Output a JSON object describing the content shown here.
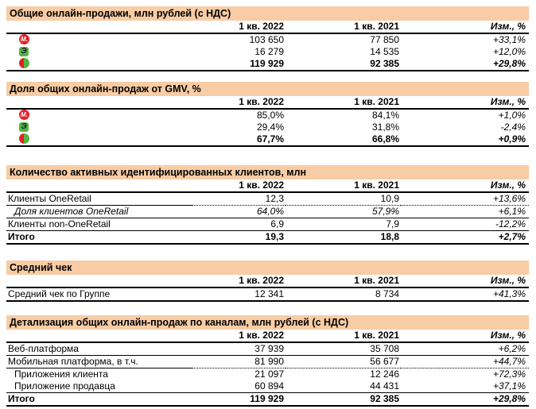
{
  "colors": {
    "title_bar_bg": "#F8CCA4",
    "mvideo_red": "#E32226",
    "eldorado_green": "#55B53E",
    "eldorado_glyph_dark": "#15153D",
    "text": "#000000",
    "rule": "#000000"
  },
  "icons": {
    "mvideo": {
      "glyph": "М."
    },
    "eldorado": {
      "glyph": "Э"
    },
    "group": {}
  },
  "column_headers": {
    "c2022": "1 кв. 2022",
    "c2021": "1 кв. 2021",
    "chg": "Изм., %"
  },
  "tables": [
    {
      "id": "online-sales",
      "title": "Общие онлайн-продажи, млн рублей (с НДС)",
      "rows": [
        {
          "icon": "mvideo",
          "c2022": "103 650",
          "c2021": "77 850",
          "chg": "+33,1%",
          "border_bottom": "none"
        },
        {
          "icon": "eldorado",
          "c2022": "16 279",
          "c2021": "14 535",
          "chg": "+12,0%",
          "border_bottom": "none"
        },
        {
          "icon": "group",
          "c2022": "119 929",
          "c2021": "92 385",
          "chg": "+29,8%",
          "bold": true,
          "border_bottom": "thick"
        }
      ]
    },
    {
      "id": "gmv-share",
      "title": "Доля общих онлайн-продаж от GMV, %",
      "rows": [
        {
          "icon": "mvideo",
          "c2022": "85,0%",
          "c2021": "84,1%",
          "chg": "+1,0%",
          "border_bottom": "none"
        },
        {
          "icon": "eldorado",
          "c2022": "29,4%",
          "c2021": "31,8%",
          "chg": "-2,4%",
          "border_bottom": "none"
        },
        {
          "icon": "group",
          "c2022": "67,7%",
          "c2021": "66,8%",
          "chg": "+0,9%",
          "bold": true,
          "border_bottom": "thick"
        }
      ]
    },
    {
      "id": "active-clients",
      "title": "Количество активных идентифицированных клиентов, млн",
      "rows": [
        {
          "label": "Клиенты OneRetail",
          "c2022": "12,3",
          "c2021": "10,9",
          "chg": "+13,6%",
          "border_bottom": "dotted"
        },
        {
          "label": "Доля клиентов OneRetail",
          "c2022": "64,0%",
          "c2021": "57,9%",
          "chg": "+6,1%",
          "italic": true,
          "indent": true,
          "border_bottom": "thin"
        },
        {
          "label": "Клиенты non-OneRetail",
          "c2022": "6,9",
          "c2021": "7,9",
          "chg": "-12,2%",
          "border_bottom": "thin"
        },
        {
          "label": "Итого",
          "c2022": "19,3",
          "c2021": "18,8",
          "chg": "+2,7%",
          "bold": true,
          "border_bottom": "thick"
        }
      ]
    },
    {
      "id": "average-check",
      "title": "Средний чек",
      "rows": [
        {
          "label": "Средний чек по Группе",
          "c2022": "12 341",
          "c2021": "8 734",
          "chg": "+41,3%",
          "border_bottom": "thick"
        }
      ]
    },
    {
      "id": "channels-detail",
      "title": "Детализация общих онлайн-продаж по каналам, млн рублей (с НДС)",
      "rows": [
        {
          "label": "Веб-платформа",
          "c2022": "37 939",
          "c2021": "35 708",
          "chg": "+6,2%",
          "border_bottom": "thin"
        },
        {
          "label": "Мобильная платформа, в т.ч.",
          "c2022": "81 990",
          "c2021": "56 677",
          "chg": "+44,7%",
          "border_bottom": "dotted"
        },
        {
          "label": "Приложения клиента",
          "c2022": "21 097",
          "c2021": "12 246",
          "chg": "+72,3%",
          "indent": true,
          "border_bottom": "none"
        },
        {
          "label": "Приложение продавца",
          "c2022": "60 894",
          "c2021": "44 431",
          "chg": "+37,1%",
          "indent": true,
          "border_bottom": "thin"
        },
        {
          "label": "Итого",
          "c2022": "119 929",
          "c2021": "92 385",
          "chg": "+29,8%",
          "bold": true,
          "border_bottom": "thick"
        }
      ]
    }
  ]
}
